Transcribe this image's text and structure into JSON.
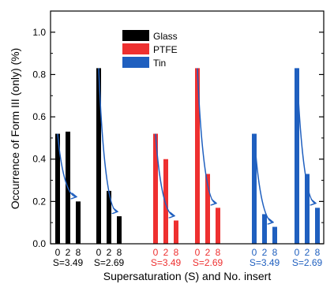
{
  "chart_data": {
    "type": "bar",
    "title": "",
    "xlabel": "Supersaturation (S) and No. insert",
    "ylabel": "Occurrence of Form III (only) (%)",
    "ylim": [
      0.0,
      1.1
    ],
    "yticks": [
      "0.0",
      "0.2",
      "0.4",
      "0.6",
      "0.8",
      "1.0"
    ],
    "legend": {
      "placement": "top-center",
      "entries": [
        {
          "name": "Glass",
          "color": "#000000"
        },
        {
          "name": "PTFE",
          "color": "#ee3030"
        },
        {
          "name": "Tin",
          "color": "#1f5fbf"
        }
      ]
    },
    "inserts": [
      "0",
      "2",
      "8"
    ],
    "groups": [
      {
        "material": "Glass",
        "supersaturation": "S=3.49",
        "color": "#000000",
        "label_color": "#000000",
        "values": [
          0.52,
          0.53,
          0.2
        ]
      },
      {
        "material": "Glass",
        "supersaturation": "S=2.69",
        "color": "#000000",
        "label_color": "#000000",
        "values": [
          0.83,
          0.25,
          0.13
        ]
      },
      {
        "material": "PTFE",
        "supersaturation": "S=3.49",
        "color": "#ee3030",
        "label_color": "#ee3030",
        "values": [
          0.52,
          0.4,
          0.11
        ]
      },
      {
        "material": "PTFE",
        "supersaturation": "S=2.69",
        "color": "#ee3030",
        "label_color": "#ee3030",
        "values": [
          0.83,
          0.33,
          0.17
        ]
      },
      {
        "material": "Tin",
        "supersaturation": "S=3.49",
        "color": "#1f5fbf",
        "label_color": "#1f5fbf",
        "values": [
          0.52,
          0.14,
          0.08
        ]
      },
      {
        "material": "Tin",
        "supersaturation": "S=2.69",
        "color": "#1f5fbf",
        "label_color": "#1f5fbf",
        "values": [
          0.83,
          0.33,
          0.17
        ]
      }
    ],
    "trend_arrow_color": "#1f5fbf"
  }
}
